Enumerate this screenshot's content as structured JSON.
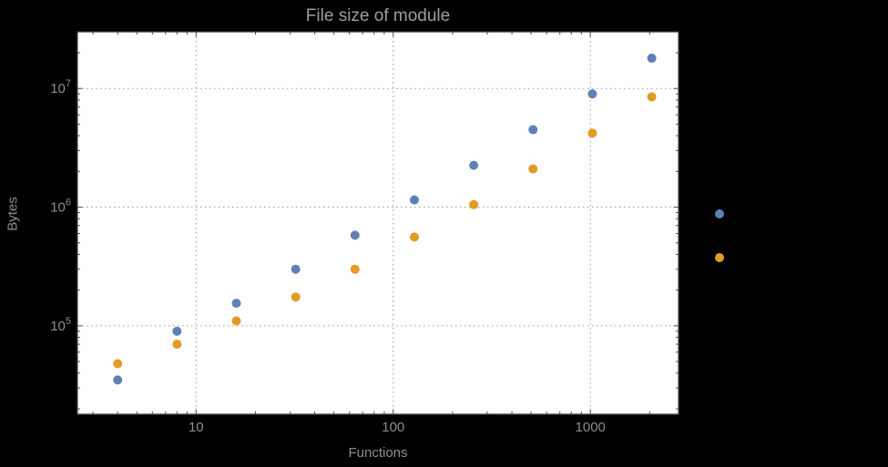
{
  "chart_data": {
    "type": "scatter",
    "title": "File size of module",
    "xlabel": "Functions",
    "ylabel": "Bytes",
    "x_scale": "log",
    "y_scale": "log",
    "x_range": [
      2.5,
      2800
    ],
    "y_range": [
      18000,
      30000000
    ],
    "grid": "dotted",
    "legend_position": "right-outside-markers-only",
    "x_ticks": {
      "major": [
        10,
        100,
        1000
      ],
      "labels": [
        "10",
        "100",
        "1000"
      ]
    },
    "y_ticks": {
      "major": [
        100000,
        1000000,
        10000000
      ],
      "label_base": "10",
      "label_exponents": [
        "5",
        "6",
        "7"
      ]
    },
    "x": [
      4,
      8,
      16,
      32,
      64,
      128,
      256,
      512,
      1024,
      2048
    ],
    "series": [
      {
        "name": "blue",
        "color": "#5e81b5",
        "values": [
          35000,
          90000,
          155000,
          300000,
          580000,
          1150000,
          2250000,
          4500000,
          9000000,
          18000000
        ]
      },
      {
        "name": "orange",
        "color": "#e19c24",
        "values": [
          48000,
          70000,
          110000,
          175000,
          300000,
          560000,
          1050000,
          2100000,
          4200000,
          8500000
        ]
      }
    ],
    "colors": {
      "page_background": "#000000",
      "plot_background": "#ffffff",
      "frame": "#4a4a4a",
      "grid": "#9a9a9a",
      "tick": "#4a4a4a",
      "text": "#8f8f8f",
      "title": "#9e9e9e"
    }
  }
}
